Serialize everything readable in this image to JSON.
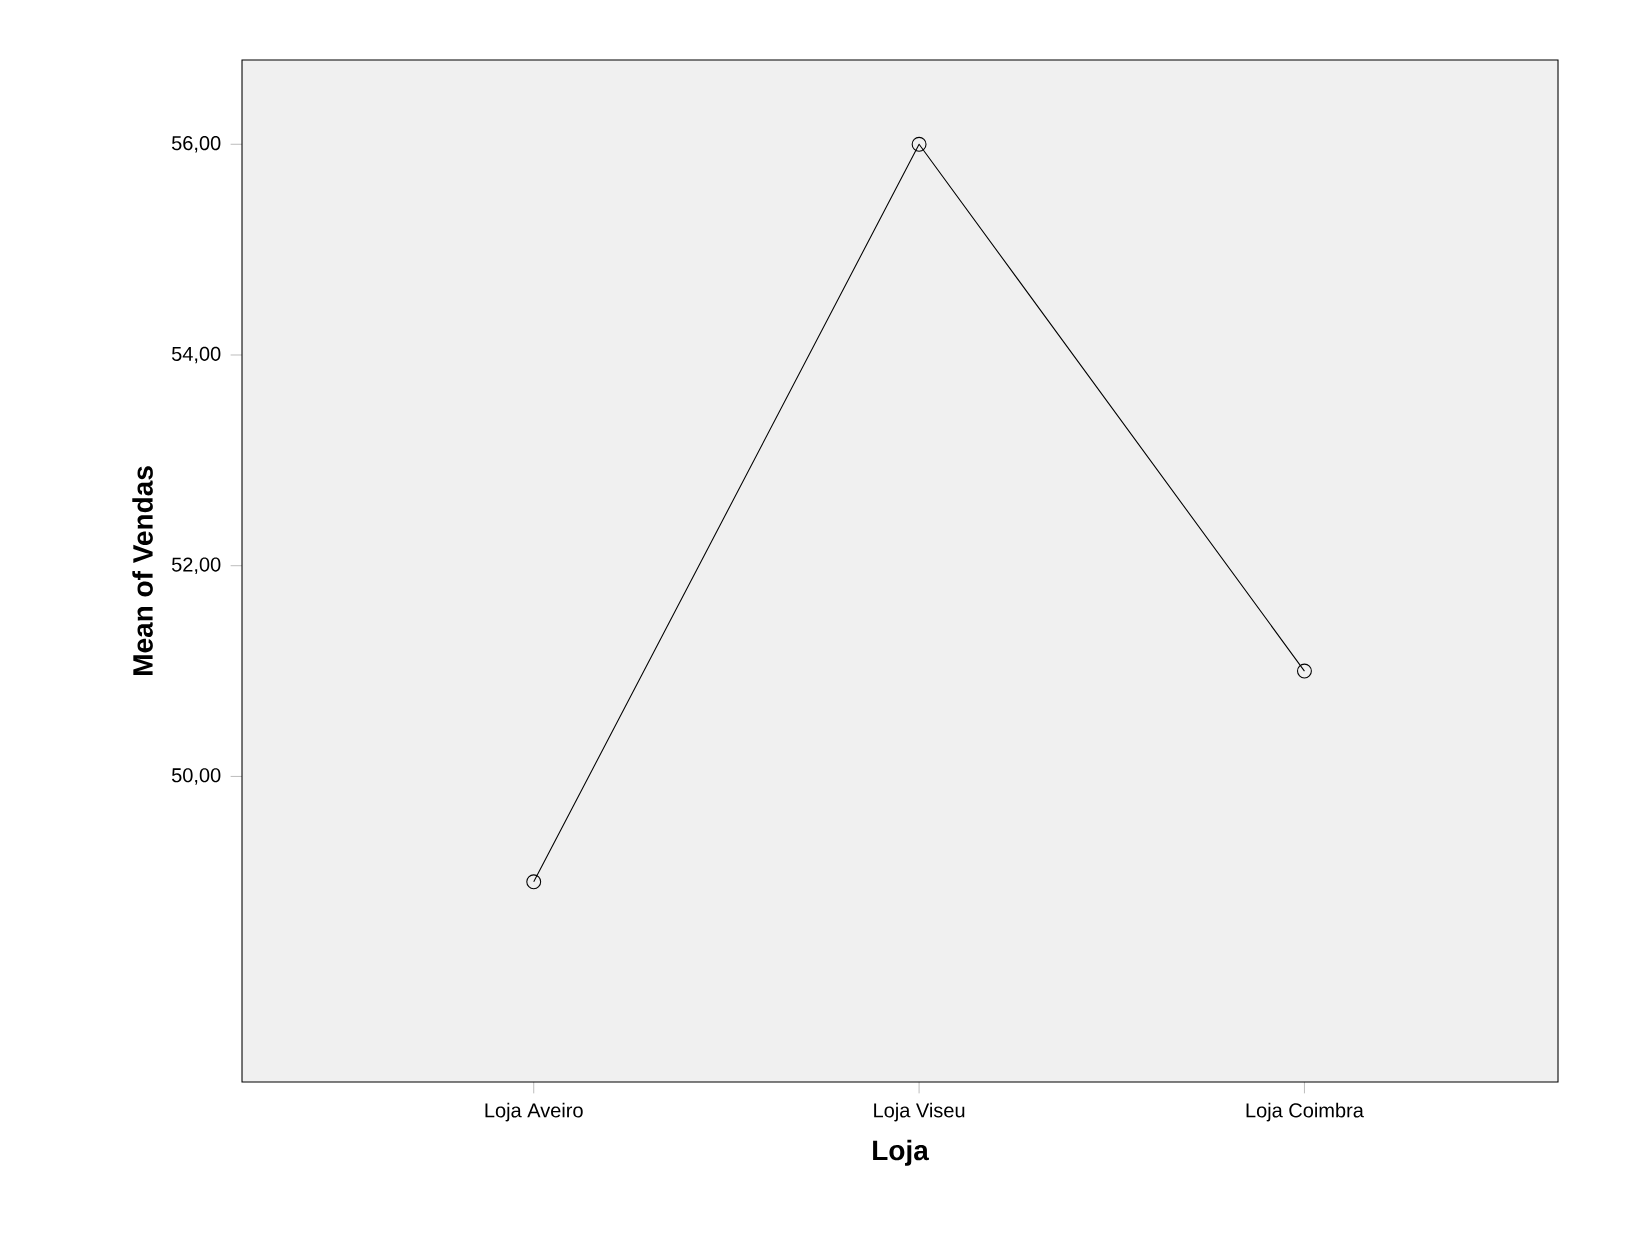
{
  "chart_data": {
    "type": "line",
    "xlabel": "Loja",
    "ylabel": "Mean of Vendas",
    "categories": [
      "Loja Aveiro",
      "Loja Viseu",
      "Loja Coimbra"
    ],
    "values": [
      49,
      56,
      51
    ],
    "color": "#000000",
    "marker": "circle",
    "line_style": "solid",
    "grid": false,
    "ylim": [
      47.1,
      56.8
    ],
    "yticks": [
      {
        "value": 50,
        "label": "50,00"
      },
      {
        "value": 52,
        "label": "52,00"
      },
      {
        "value": 54,
        "label": "54,00"
      },
      {
        "value": 56,
        "label": "56,00"
      }
    ]
  }
}
